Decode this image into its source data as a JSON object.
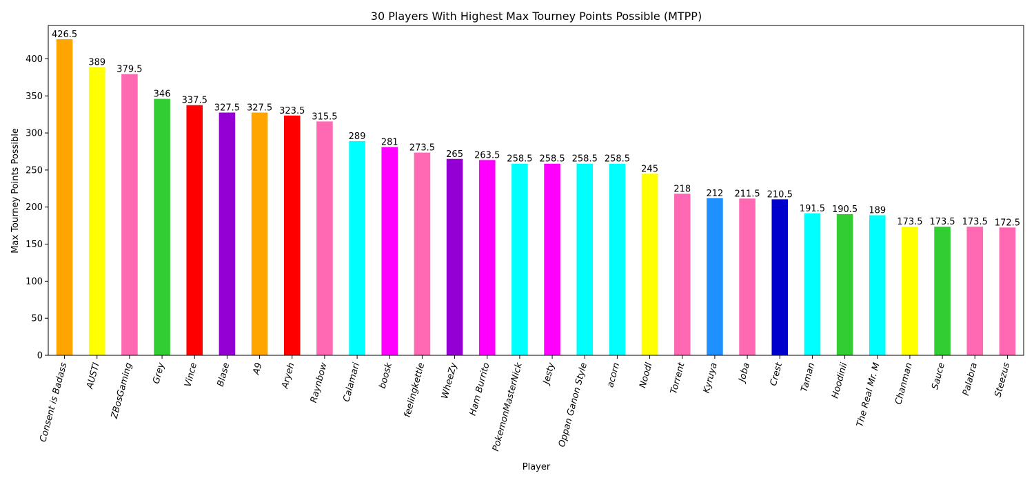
{
  "chart_data": {
    "type": "bar",
    "title": "30 Players With Highest Max Tourney Points Possible (MTPP)",
    "xlabel": "Player",
    "ylabel": "Max Tourney Points Possible",
    "ylim": [
      0,
      445
    ],
    "yticks": [
      0,
      50,
      100,
      150,
      200,
      250,
      300,
      350,
      400
    ],
    "grid": false,
    "categories": [
      "Consent is Badass",
      "AUSTI",
      "ZBosGaming",
      "Grey",
      "Vince",
      "Blase",
      "A9",
      "Aryeh",
      "Raynbow",
      "Calamari",
      "boosk",
      "feelingkettle",
      "WheeZy",
      "Ham Burrito",
      "PokemonMasterNick",
      "Jesty",
      "Oppan Ganon Style",
      "acorn",
      "Noodl",
      "Torrent",
      "Kyruya",
      "Joba",
      "Crest",
      "Taman",
      "Hoodinii",
      "The Real Mr. M",
      "Chanman",
      "Sauce",
      "Palabra",
      "Steezus"
    ],
    "values": [
      426.5,
      389,
      379.5,
      346,
      337.5,
      327.5,
      327.5,
      323.5,
      315.5,
      289,
      281,
      273.5,
      265,
      263.5,
      258.5,
      258.5,
      258.5,
      258.5,
      245,
      218,
      212,
      211.5,
      210.5,
      191.5,
      190.5,
      189,
      173.5,
      173.5,
      173.5,
      172.5
    ],
    "value_labels": [
      "426.5",
      "389",
      "379.5",
      "346",
      "337.5",
      "327.5",
      "327.5",
      "323.5",
      "315.5",
      "289",
      "281",
      "273.5",
      "265",
      "263.5",
      "258.5",
      "258.5",
      "258.5",
      "258.5",
      "245",
      "218",
      "212",
      "211.5",
      "210.5",
      "191.5",
      "190.5",
      "189",
      "173.5",
      "173.5",
      "173.5",
      "172.5"
    ],
    "colors": [
      "#FFA500",
      "#FFFF00",
      "#FF69B4",
      "#32CD32",
      "#FF0000",
      "#9400D3",
      "#FFA500",
      "#FF0000",
      "#FF69B4",
      "#00FFFF",
      "#FF00FF",
      "#FF69B4",
      "#9400D3",
      "#FF00FF",
      "#00FFFF",
      "#FF00FF",
      "#00FFFF",
      "#00FFFF",
      "#FFFF00",
      "#FF69B4",
      "#1E90FF",
      "#FF69B4",
      "#0000CD",
      "#00FFFF",
      "#32CD32",
      "#00FFFF",
      "#FFFF00",
      "#32CD32",
      "#FF69B4",
      "#FF69B4"
    ]
  }
}
